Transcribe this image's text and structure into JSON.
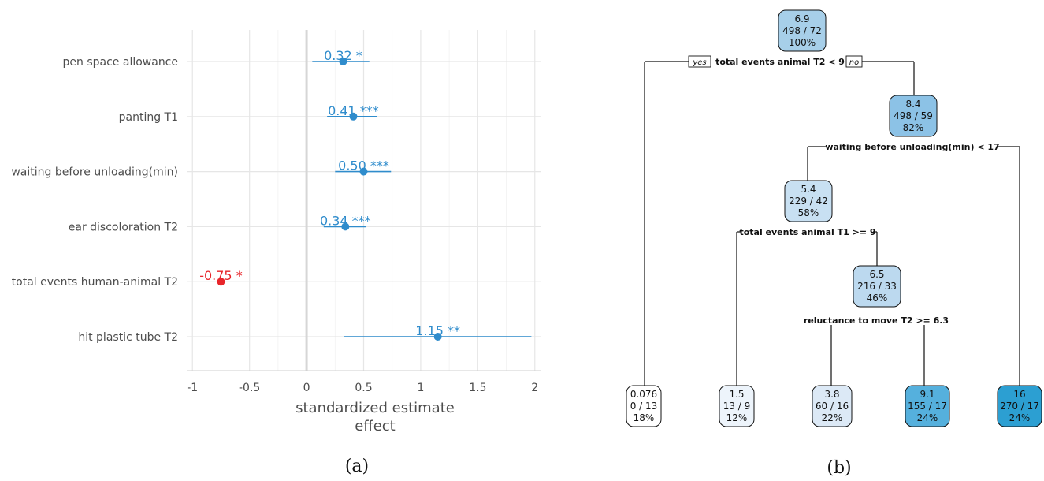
{
  "panel_a": {
    "label": "(a)",
    "chart_data": {
      "type": "scatter",
      "subtype": "forest-plot",
      "xlabel": [
        "standardized estimate",
        "effect"
      ],
      "xticks": [
        -1,
        -0.5,
        0,
        0.5,
        1,
        1.5,
        2
      ],
      "xlim": [
        -1.05,
        2.05
      ],
      "grid": true,
      "rows": [
        {
          "label": "pen space allowance",
          "estimate": 0.32,
          "low": 0.05,
          "high": 0.55,
          "text": "0.32 *",
          "color": "#2f8ccc"
        },
        {
          "label": "panting T1",
          "estimate": 0.41,
          "low": 0.18,
          "high": 0.62,
          "text": "0.41 ***",
          "color": "#2f8ccc"
        },
        {
          "label": "waiting before unloading(min)",
          "estimate": 0.5,
          "low": 0.25,
          "high": 0.74,
          "text": "0.50 ***",
          "color": "#2f8ccc"
        },
        {
          "label": "ear discoloration T2",
          "estimate": 0.34,
          "low": 0.15,
          "high": 0.52,
          "text": "0.34 ***",
          "color": "#2f8ccc"
        },
        {
          "label": "total events human-animal T2",
          "estimate": -0.75,
          "low": -0.78,
          "high": -0.72,
          "text": "-0.75 *",
          "color": "#e8252a"
        },
        {
          "label": "hit plastic tube T2",
          "estimate": 1.15,
          "low": 0.33,
          "high": 1.97,
          "text": "1.15 **",
          "color": "#2f8ccc"
        }
      ]
    }
  },
  "panel_b": {
    "label": "(b)",
    "chart_data": {
      "type": "tree",
      "nodes": [
        {
          "id": "root",
          "lines": [
            "6.9",
            "498 / 72",
            "100%"
          ],
          "fill": "#a7cfe9"
        },
        {
          "id": "leaf1",
          "lines": [
            "0.076",
            "0 / 13",
            "18%"
          ],
          "fill": "#ffffff"
        },
        {
          "id": "n2",
          "lines": [
            "8.4",
            "498 / 59",
            "82%"
          ],
          "fill": "#8cc2e6"
        },
        {
          "id": "n3",
          "lines": [
            "5.4",
            "229 / 42",
            "58%"
          ],
          "fill": "#c8e0f2"
        },
        {
          "id": "leaf5",
          "lines": [
            "16",
            "270 / 17",
            "24%"
          ],
          "fill": "#2c9fd2"
        },
        {
          "id": "leaf2",
          "lines": [
            "1.5",
            "13 / 9",
            "12%"
          ],
          "fill": "#edf4fb"
        },
        {
          "id": "n4",
          "lines": [
            "6.5",
            "216 / 33",
            "46%"
          ],
          "fill": "#bcd9ef"
        },
        {
          "id": "leaf3",
          "lines": [
            "3.8",
            "60 / 16",
            "22%"
          ],
          "fill": "#dce9f6"
        },
        {
          "id": "leaf4",
          "lines": [
            "9.1",
            "155 / 17",
            "24%"
          ],
          "fill": "#55b0dd"
        }
      ],
      "splits": [
        {
          "node": "root",
          "text": "total events animal T2 < 9",
          "yes": "yes",
          "no": "no"
        },
        {
          "node": "n2",
          "text": "waiting before unloading(min) < 17"
        },
        {
          "node": "n3",
          "text": "total events animal T1 >= 9"
        },
        {
          "node": "n4",
          "text": "reluctance to move T2 >= 6.3"
        }
      ]
    }
  }
}
